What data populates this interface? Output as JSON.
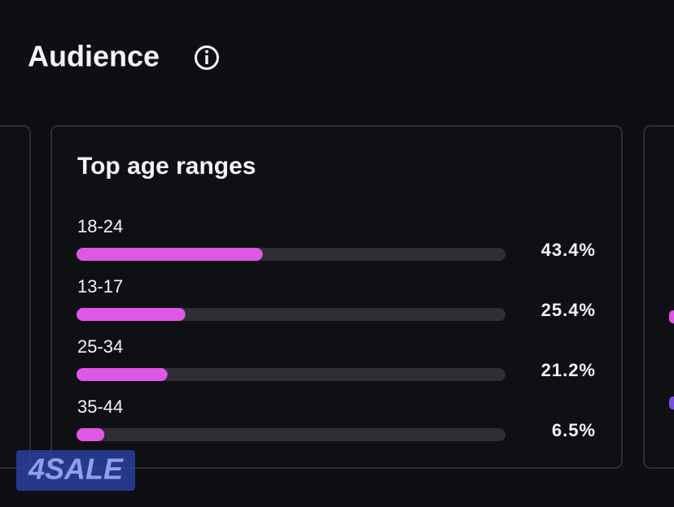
{
  "header": {
    "title": "Audience"
  },
  "chart_data": {
    "type": "bar",
    "orientation": "horizontal",
    "title": "Top age ranges",
    "categories": [
      "18-24",
      "13-17",
      "25-34",
      "35-44"
    ],
    "values": [
      43.4,
      25.4,
      21.2,
      6.5
    ],
    "value_labels": [
      "43.4%",
      "25.4%",
      "21.2%",
      "6.5%"
    ],
    "xlim": [
      0,
      100
    ],
    "color": "#de57e5",
    "track_color": "#2d2f35"
  },
  "watermark": "4SALE"
}
